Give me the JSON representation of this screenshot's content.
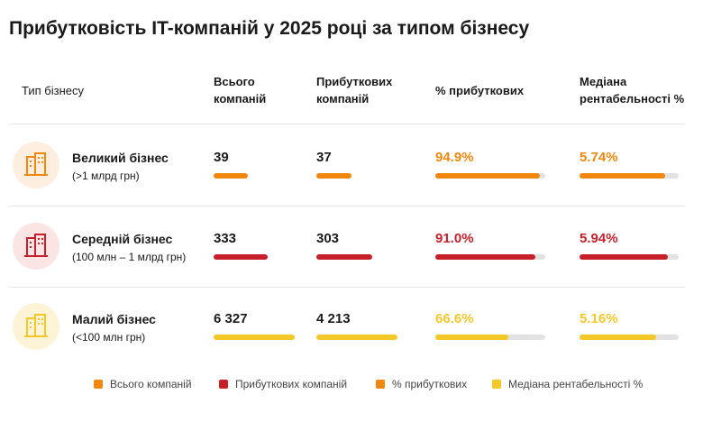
{
  "title": "Прибутковість IT-компаній у 2025 році за типом бізнесу",
  "table": {
    "header": [
      "Тип бізнесу",
      "Всього компаній",
      "Прибуткових компаній",
      "% прибуткових",
      "Медіана рентабельності %"
    ],
    "rows": [
      {
        "name": "Великий бізнес",
        "range": "(>1 млрд грн)",
        "color": "#f0870f",
        "cells": [
          "39",
          "37",
          "94.9%",
          "5.74%"
        ]
      },
      {
        "name": "Середній бізнес",
        "range": "(100 млн – 1 млрд грн)",
        "color": "#c8202a",
        "cells": [
          "333",
          "303",
          "91.0%",
          "5.94%"
        ]
      },
      {
        "name": "Малий бізнес",
        "range": "(<100 млн грн)",
        "color": "#f5c82a",
        "cells": [
          "6 327",
          "4 213",
          "66.6%",
          "5.16%"
        ]
      }
    ]
  },
  "legend": [
    {
      "label": "Всього компаній",
      "color": "#f0870f"
    },
    {
      "label": "Прибуткових компаній",
      "color": "#c8202a"
    },
    {
      "label": "% прибуткових",
      "color": "#f0870f"
    },
    {
      "label": "Медіана рентабельності %",
      "color": "#f5c82a"
    }
  ]
}
